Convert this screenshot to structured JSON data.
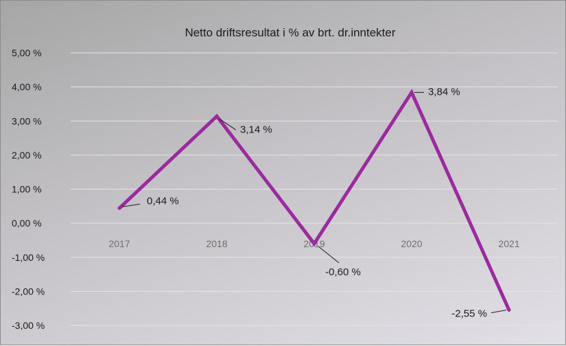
{
  "chart_data": {
    "type": "line",
    "title": "Netto driftsresultat  i % av brt. dr.inntekter",
    "xlabel": "",
    "ylabel": "",
    "categories": [
      "2017",
      "2018",
      "2019",
      "2020",
      "2021"
    ],
    "series": [
      {
        "values": [
          0.44,
          3.14,
          -0.6,
          3.84,
          -2.55
        ],
        "color": "#9a2a9e"
      }
    ],
    "data_labels": [
      "0,44 %",
      "3,14 %",
      "-0,60 %",
      "3,84 %",
      "-2,55 %"
    ],
    "y_ticks": [
      5,
      4,
      3,
      2,
      1,
      0,
      -1,
      -2,
      -3
    ],
    "y_tick_labels": [
      "5,00 %",
      "4,00 %",
      "3,00 %",
      "2,00 %",
      "1,00 %",
      "0,00 %",
      "-1,00 %",
      "-2,00 %",
      "-3,00 %"
    ],
    "ylim": [
      -3,
      5
    ],
    "grid": true,
    "legend": "none"
  }
}
